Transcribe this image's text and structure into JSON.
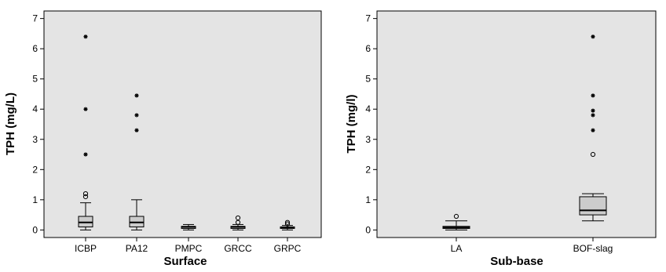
{
  "chart_data": [
    {
      "type": "box",
      "xlabel": "Surface",
      "ylabel": "TPH (mg/L)",
      "ylim": [
        -0.25,
        7.25
      ],
      "yticks": [
        "0",
        "1",
        "2",
        "3",
        "4",
        "5",
        "6",
        "7"
      ],
      "ytick_values": [
        0,
        1,
        2,
        3,
        4,
        5,
        6,
        7
      ],
      "background": "#e4e4e4",
      "box_fill": "#cccccc",
      "grid": false,
      "categories": [
        "ICBP",
        "PA12",
        "PMPC",
        "GRCC",
        "GRPC"
      ],
      "boxes": [
        {
          "category": "ICBP",
          "whisker_low": 0.0,
          "q1": 0.1,
          "median": 0.25,
          "q3": 0.45,
          "whisker_high": 0.9,
          "outliers": [
            {
              "value": 1.1,
              "marker": "circle"
            },
            {
              "value": 1.2,
              "marker": "circle"
            }
          ],
          "extremes": [
            {
              "value": 2.5,
              "marker": "star"
            },
            {
              "value": 4.0,
              "marker": "star"
            },
            {
              "value": 6.4,
              "marker": "star"
            }
          ]
        },
        {
          "category": "PA12",
          "whisker_low": 0.0,
          "q1": 0.1,
          "median": 0.25,
          "q3": 0.45,
          "whisker_high": 1.0,
          "outliers": [],
          "extremes": [
            {
              "value": 3.3,
              "marker": "star"
            },
            {
              "value": 3.8,
              "marker": "star"
            },
            {
              "value": 4.45,
              "marker": "star"
            }
          ]
        },
        {
          "category": "PMPC",
          "whisker_low": 0.0,
          "q1": 0.05,
          "median": 0.1,
          "q3": 0.12,
          "whisker_high": 0.18,
          "outliers": [],
          "extremes": []
        },
        {
          "category": "GRCC",
          "whisker_low": 0.0,
          "q1": 0.05,
          "median": 0.1,
          "q3": 0.12,
          "whisker_high": 0.18,
          "outliers": [
            {
              "value": 0.25,
              "marker": "circle"
            },
            {
              "value": 0.4,
              "marker": "circle"
            }
          ],
          "extremes": []
        },
        {
          "category": "GRPC",
          "whisker_low": 0.0,
          "q1": 0.05,
          "median": 0.08,
          "q3": 0.1,
          "whisker_high": 0.15,
          "outliers": [
            {
              "value": 0.2,
              "marker": "circle"
            },
            {
              "value": 0.25,
              "marker": "circle"
            }
          ],
          "extremes": []
        }
      ]
    },
    {
      "type": "box",
      "xlabel": "Sub-base",
      "ylabel": "TPH (mg/l)",
      "ylim": [
        -0.25,
        7.25
      ],
      "yticks": [
        "0",
        "1",
        "2",
        "3",
        "4",
        "5",
        "6",
        "7"
      ],
      "ytick_values": [
        0,
        1,
        2,
        3,
        4,
        5,
        6,
        7
      ],
      "background": "#e4e4e4",
      "box_fill": "#cccccc",
      "grid": false,
      "categories": [
        "LA",
        "BOF-slag"
      ],
      "boxes": [
        {
          "category": "LA",
          "whisker_low": 0.0,
          "q1": 0.05,
          "median": 0.08,
          "q3": 0.12,
          "whisker_high": 0.3,
          "outliers": [
            {
              "value": 0.45,
              "marker": "circle"
            }
          ],
          "extremes": []
        },
        {
          "category": "BOF-slag",
          "whisker_low": 0.3,
          "q1": 0.5,
          "median": 0.65,
          "q3": 1.1,
          "whisker_high": 1.2,
          "outliers": [
            {
              "value": 2.5,
              "marker": "circle"
            }
          ],
          "extremes": [
            {
              "value": 3.3,
              "marker": "star"
            },
            {
              "value": 3.8,
              "marker": "star"
            },
            {
              "value": 3.95,
              "marker": "star"
            },
            {
              "value": 4.45,
              "marker": "star"
            },
            {
              "value": 6.4,
              "marker": "star"
            }
          ]
        }
      ]
    }
  ]
}
